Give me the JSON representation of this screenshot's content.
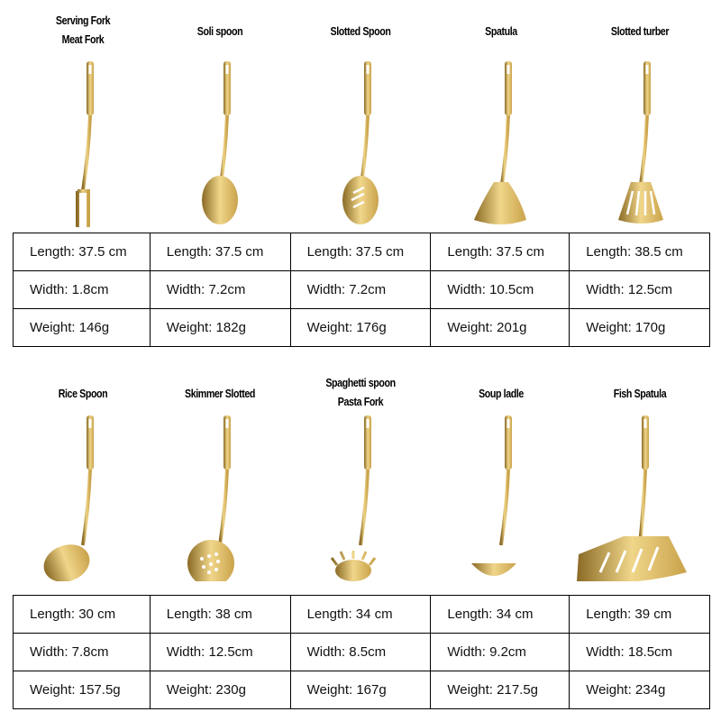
{
  "colors": {
    "gold": "#c9a24a",
    "gold_dark": "#8a6a25",
    "gold_light": "#f0d68a",
    "border": "#000000"
  },
  "groups": [
    {
      "items": [
        {
          "name": [
            "Serving Fork",
            "Meat Fork"
          ],
          "head": "fork",
          "length": "Length: 37.5 cm",
          "width": "Width: 1.8cm",
          "weight": "Weight: 146g"
        },
        {
          "name": [
            "Soli spoon"
          ],
          "head": "spoon",
          "length": "Length: 37.5 cm",
          "width": "Width: 7.2cm",
          "weight": "Weight: 182g"
        },
        {
          "name": [
            "Slotted Spoon"
          ],
          "head": "slotted-spoon",
          "length": "Length: 37.5 cm",
          "width": "Width: 7.2cm",
          "weight": "Weight: 176g"
        },
        {
          "name": [
            "Spatula"
          ],
          "head": "spatula",
          "length": "Length: 37.5 cm",
          "width": "Width: 10.5cm",
          "weight": "Weight: 201g"
        },
        {
          "name": [
            "Slotted turber"
          ],
          "head": "slotted-turner",
          "length": "Length: 38.5 cm",
          "width": "Width: 12.5cm",
          "weight": "Weight: 170g"
        }
      ]
    },
    {
      "items": [
        {
          "name": [
            "Rice Spoon"
          ],
          "head": "rice-spoon",
          "length": "Length: 30 cm",
          "width": "Width: 7.8cm",
          "weight": "Weight: 157.5g"
        },
        {
          "name": [
            "Skimmer Slotted"
          ],
          "head": "skimmer",
          "length": "Length: 38 cm",
          "width": "Width: 12.5cm",
          "weight": "Weight: 230g"
        },
        {
          "name": [
            "Spaghetti spoon",
            "Pasta Fork"
          ],
          "head": "pasta-fork",
          "length": "Length: 34 cm",
          "width": "Width: 8.5cm",
          "weight": "Weight: 167g"
        },
        {
          "name": [
            "Soup ladle"
          ],
          "head": "ladle",
          "length": "Length: 34 cm",
          "width": "Width: 9.2cm",
          "weight": "Weight: 217.5g"
        },
        {
          "name": [
            "Fish Spatula"
          ],
          "head": "fish-spatula",
          "length": "Length: 39 cm",
          "width": "Width: 18.5cm",
          "weight": "Weight: 234g"
        }
      ]
    }
  ]
}
